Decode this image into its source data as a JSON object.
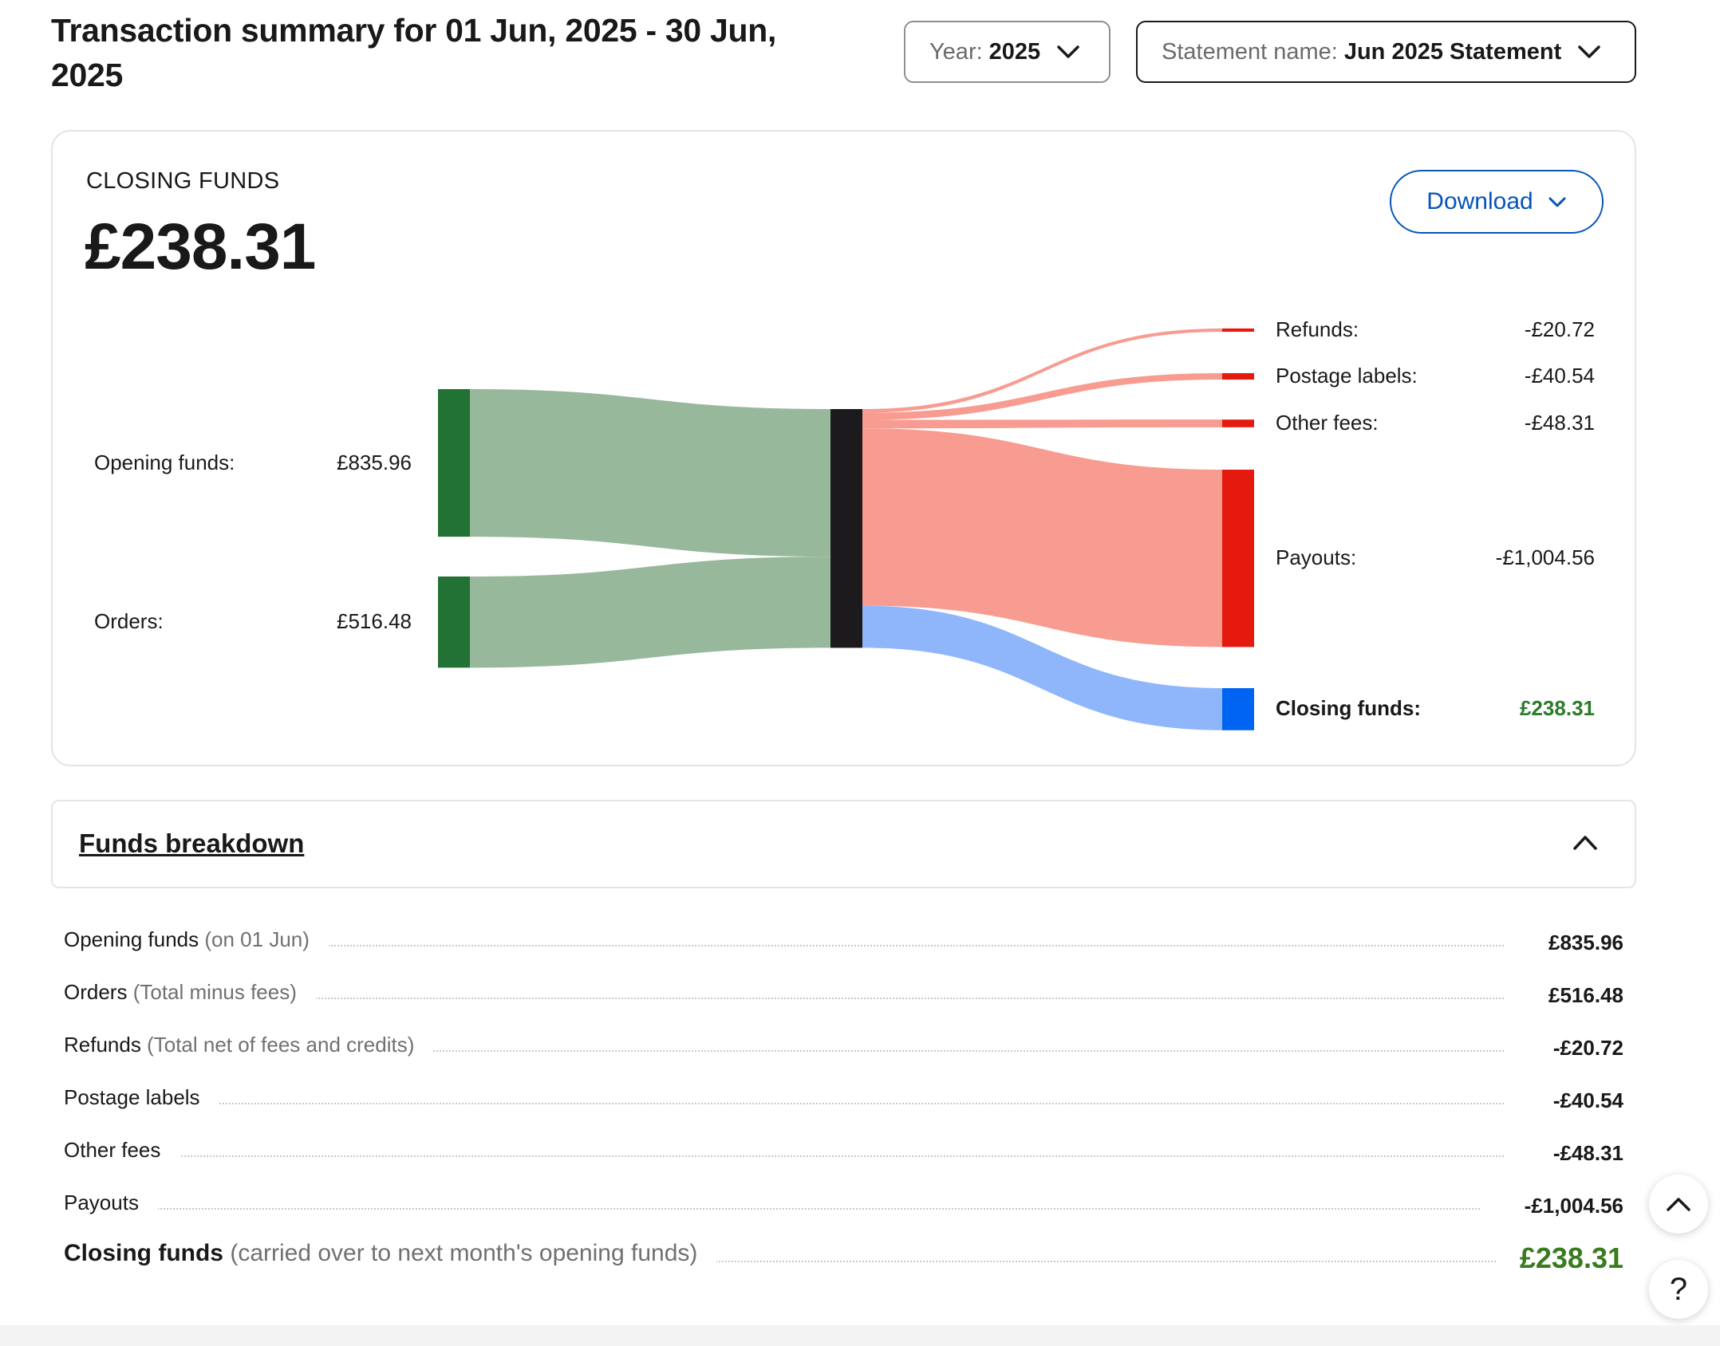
{
  "header": {
    "title": "Transaction summary for 01 Jun, 2025 - 30 Jun, 2025",
    "year_label": "Year:",
    "year_value": "2025",
    "statement_label": "Statement name:",
    "statement_value": "Jun 2025 Statement"
  },
  "summary": {
    "closing_label": "CLOSING FUNDS",
    "closing_amount": "£238.31",
    "download_label": "Download"
  },
  "colors": {
    "inflow_node": "#217234",
    "inflow_link": "#98b89c",
    "middle_node": "#1c1a1d",
    "outflow_node": "#e41a0e",
    "outflow_link": "#f89b90",
    "closing_node": "#0064f2",
    "closing_link": "#8fb6fb"
  },
  "chart_data": {
    "type": "sankey",
    "sources": [
      {
        "label": "Opening funds:",
        "display": "£835.96",
        "value": 835.96
      },
      {
        "label": "Orders:",
        "display": "£516.48",
        "value": 516.48
      }
    ],
    "targets": [
      {
        "label": "Refunds:",
        "display": "-£20.72",
        "value": 20.72
      },
      {
        "label": "Postage labels:",
        "display": "-£40.54",
        "value": 40.54
      },
      {
        "label": "Other fees:",
        "display": "-£48.31",
        "value": 48.31
      },
      {
        "label": "Payouts:",
        "display": "-£1,004.56",
        "value": 1004.56
      },
      {
        "label": "Closing funds:",
        "display": "£238.31",
        "value": 238.31,
        "highlight": true
      }
    ]
  },
  "breakdown": {
    "title": "Funds breakdown",
    "rows": [
      {
        "label": "Opening funds",
        "note": "(on 01 Jun)",
        "value": "£835.96"
      },
      {
        "label": "Orders",
        "note": "(Total minus fees)",
        "value": "£516.48"
      },
      {
        "label": "Refunds",
        "note": "(Total net of fees and credits)",
        "value": "-£20.72"
      },
      {
        "label": "Postage labels",
        "note": "",
        "value": "-£40.54"
      },
      {
        "label": "Other fees",
        "note": "",
        "value": "-£48.31"
      },
      {
        "label": "Payouts",
        "note": "",
        "value": "-£1,004.56"
      }
    ],
    "total": {
      "label": "Closing funds",
      "note": "(carried over to next month's opening funds)",
      "value": "£238.31"
    }
  },
  "floating": {
    "help_label": "?"
  }
}
